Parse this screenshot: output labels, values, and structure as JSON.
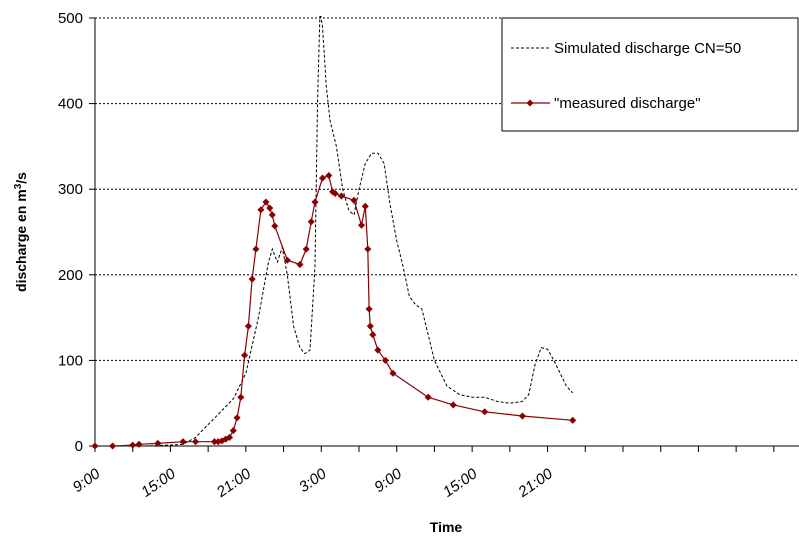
{
  "chart_data": {
    "type": "line",
    "xlabel": "Time",
    "ylabel_main": "discharge en m",
    "ylabel_sup": "3",
    "ylabel_end": "/s",
    "ylim": [
      0,
      500
    ],
    "xlim": [
      9,
      65
    ],
    "y_ticks": [
      0,
      100,
      200,
      300,
      400,
      500
    ],
    "x_ticks": [
      {
        "value": 9,
        "label": "9:00"
      },
      {
        "value": 15,
        "label": "15:00"
      },
      {
        "value": 21,
        "label": "21:00"
      },
      {
        "value": 27,
        "label": "3:00"
      },
      {
        "value": 33,
        "label": "9:00"
      },
      {
        "value": 39,
        "label": "15:00"
      },
      {
        "value": 45,
        "label": "21:00"
      }
    ],
    "grid": "horizontal",
    "legend_position": "top-right",
    "series": [
      {
        "name": "Simulated discharge CN=50",
        "color": "#000000",
        "style": "dashed",
        "x": [
          9,
          11,
          13,
          15,
          16,
          17,
          18,
          19,
          20,
          21,
          22,
          22.8,
          23.1,
          23.5,
          23.9,
          24.3,
          24.8,
          25.3,
          25.7,
          26.1,
          26.5,
          26.7,
          26.9,
          27.1,
          27.4,
          27.7,
          28.2,
          28.7,
          29.2,
          29.6,
          30,
          30.5,
          31,
          31.5,
          32,
          32.5,
          33,
          33.5,
          34,
          34.5,
          35,
          36,
          37,
          38,
          39,
          40,
          41,
          42,
          43,
          43.5,
          44,
          44.5,
          45,
          45.5,
          46,
          46.5,
          47
        ],
        "y": [
          0,
          0,
          0,
          1,
          2,
          10,
          25,
          40,
          55,
          85,
          150,
          215,
          230,
          215,
          232,
          200,
          140,
          115,
          108,
          112,
          210,
          400,
          508,
          490,
          420,
          380,
          350,
          300,
          275,
          270,
          300,
          330,
          342,
          342,
          330,
          280,
          240,
          210,
          175,
          165,
          160,
          100,
          70,
          60,
          57,
          57,
          52,
          50,
          52,
          60,
          95,
          115,
          113,
          100,
          85,
          70,
          62
        ]
      },
      {
        "name": "\"measured discharge\"",
        "color": "#8b0000",
        "style": "solid-markers",
        "x": [
          9,
          10.4,
          12,
          12.5,
          14,
          16,
          17,
          18.5,
          18.8,
          19.1,
          19.4,
          19.7,
          20,
          20.3,
          20.6,
          20.9,
          21.2,
          21.5,
          21.8,
          22.2,
          22.6,
          22.9,
          23.1,
          23.3,
          24.3,
          25.3,
          25.8,
          26.2,
          26.5,
          27.1,
          27.6,
          27.9,
          28.1,
          28.6,
          29.6,
          30.2,
          30.5,
          30.7,
          30.8,
          30.9,
          31.1,
          31.5,
          32.1,
          32.7,
          35.5,
          37.5,
          40,
          43,
          47
        ],
        "y": [
          0,
          0,
          1,
          2,
          3,
          5,
          5,
          5,
          5,
          6,
          8,
          10,
          18,
          33,
          57,
          106,
          140,
          195,
          230,
          276,
          285,
          278,
          270,
          257,
          217,
          212,
          230,
          262,
          285,
          313,
          316,
          297,
          295,
          292,
          287,
          258,
          280,
          230,
          160,
          140,
          130,
          112,
          100,
          85,
          57,
          48,
          40,
          35,
          30
        ]
      }
    ]
  }
}
